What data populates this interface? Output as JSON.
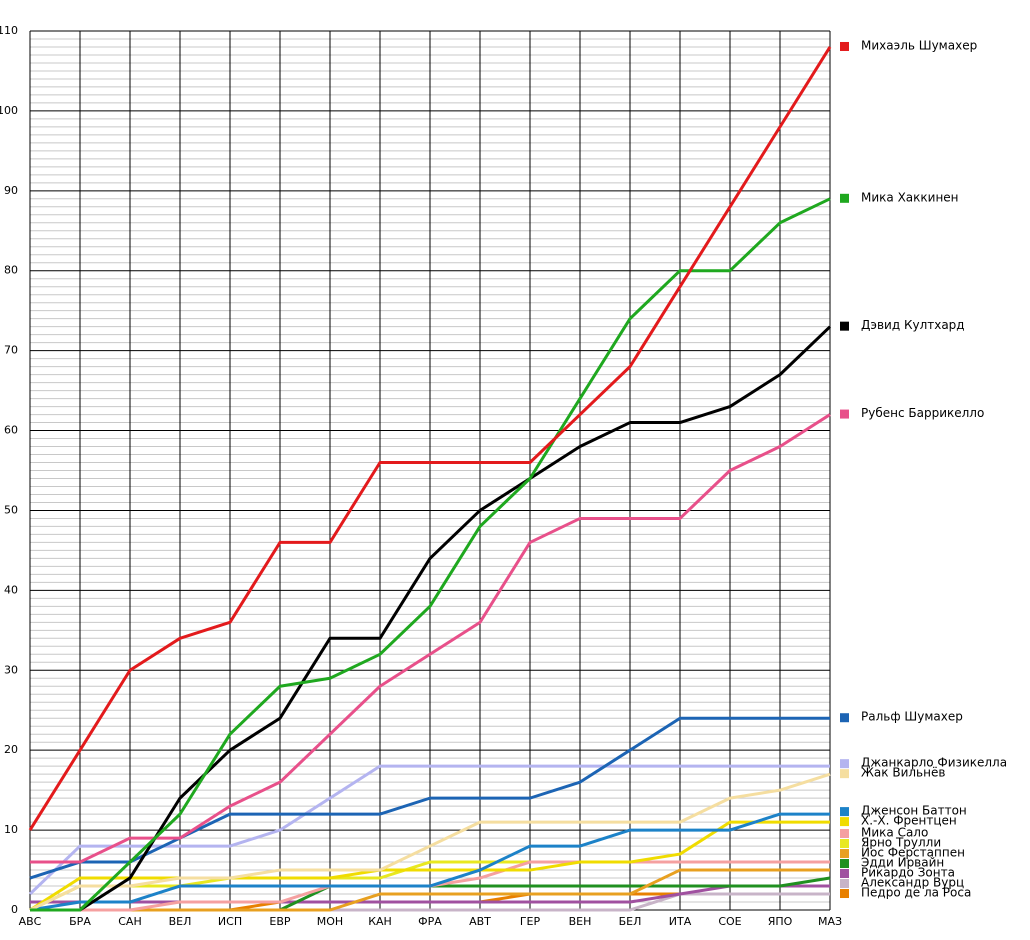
{
  "chart_data": {
    "type": "line",
    "categories": [
      "АВС",
      "БРА",
      "САН",
      "ВЕЛ",
      "ИСП",
      "ЕВР",
      "МОН",
      "КАН",
      "ФРА",
      "АВТ",
      "ГЕР",
      "ВЕН",
      "БЕЛ",
      "ИТА",
      "СОЕ",
      "ЯПО",
      "МАЗ"
    ],
    "ylim": [
      0,
      110
    ],
    "yticks": [
      0,
      10,
      20,
      30,
      40,
      50,
      60,
      70,
      80,
      90,
      100,
      110
    ],
    "grid": true,
    "minor_grid": true,
    "legend": "right",
    "series": [
      {
        "name": "Михаэль Шумахер",
        "color": "#e31a1c",
        "values": [
          10,
          20,
          30,
          34,
          36,
          46,
          46,
          56,
          56,
          56,
          56,
          62,
          68,
          78,
          88,
          98,
          108
        ]
      },
      {
        "name": "Мика Хаккинен",
        "color": "#1fa81f",
        "values": [
          0,
          0,
          6,
          12,
          22,
          28,
          29,
          32,
          38,
          48,
          54,
          64,
          74,
          80,
          80,
          86,
          89
        ]
      },
      {
        "name": "Дэвид Култхард",
        "color": "#000000",
        "values": [
          0,
          0,
          4,
          14,
          20,
          24,
          34,
          34,
          44,
          50,
          54,
          58,
          61,
          61,
          63,
          67,
          73
        ]
      },
      {
        "name": "Рубенс Баррикелло",
        "color": "#e8508a",
        "values": [
          6,
          6,
          9,
          9,
          13,
          16,
          22,
          28,
          32,
          36,
          46,
          49,
          49,
          49,
          55,
          58,
          62
        ]
      },
      {
        "name": "Ральф Шумахер",
        "color": "#1c64b4",
        "values": [
          4,
          6,
          6,
          9,
          12,
          12,
          12,
          12,
          14,
          14,
          14,
          16,
          20,
          24,
          24,
          24,
          24
        ]
      },
      {
        "name": "Джанкарло Физикелла",
        "color": "#b4b4f0",
        "values": [
          2,
          8,
          8,
          8,
          8,
          10,
          14,
          18,
          18,
          18,
          18,
          18,
          18,
          18,
          18,
          18,
          18
        ]
      },
      {
        "name": "Жак Вильнёв",
        "color": "#f5dea0",
        "values": [
          0,
          3,
          3,
          4,
          4,
          5,
          5,
          5,
          8,
          11,
          11,
          11,
          11,
          11,
          14,
          15,
          17
        ]
      },
      {
        "name": "Дженсон Баттон",
        "color": "#1c82c8",
        "values": [
          0,
          1,
          1,
          3,
          3,
          3,
          3,
          3,
          3,
          5,
          8,
          8,
          10,
          10,
          10,
          12,
          12
        ]
      },
      {
        "name": "Х.-Х. Френтцен",
        "color": "#f0dc00",
        "values": [
          0,
          4,
          4,
          4,
          4,
          4,
          4,
          5,
          5,
          5,
          5,
          6,
          6,
          7,
          11,
          11,
          11
        ]
      },
      {
        "name": "Мика Сало",
        "color": "#f5a0a0",
        "values": [
          0,
          0,
          0,
          1,
          1,
          1,
          3,
          3,
          3,
          4,
          6,
          6,
          6,
          6,
          6,
          6,
          6
        ]
      },
      {
        "name": "Ярно Трулли",
        "color": "#e8e820",
        "values": [
          0,
          3,
          3,
          3,
          4,
          4,
          4,
          4,
          6,
          6,
          6,
          6,
          6,
          6,
          6,
          6,
          6
        ]
      },
      {
        "name": "Йос Ферстаппен",
        "color": "#e8a020",
        "values": [
          0,
          0,
          0,
          0,
          0,
          0,
          0,
          2,
          2,
          2,
          2,
          2,
          2,
          5,
          5,
          5,
          5
        ]
      },
      {
        "name": "Эдди Ирвайн",
        "color": "#209020",
        "values": [
          0,
          0,
          0,
          0,
          0,
          0,
          3,
          3,
          3,
          3,
          3,
          3,
          3,
          3,
          3,
          3,
          4
        ]
      },
      {
        "name": "Рикардо Зонта",
        "color": "#a050a0",
        "values": [
          1,
          1,
          1,
          1,
          1,
          1,
          1,
          1,
          1,
          1,
          1,
          1,
          1,
          2,
          3,
          3,
          3
        ]
      },
      {
        "name": "Александр Вурц",
        "color": "#c8b4c8",
        "values": [
          0,
          0,
          0,
          0,
          0,
          0,
          0,
          0,
          0,
          0,
          0,
          0,
          0,
          2,
          2,
          2,
          2
        ]
      },
      {
        "name": "Педро де ла Роса",
        "color": "#e88000",
        "values": [
          0,
          0,
          0,
          0,
          0,
          1,
          1,
          1,
          1,
          1,
          2,
          2,
          2,
          2,
          2,
          2,
          2
        ]
      }
    ]
  }
}
